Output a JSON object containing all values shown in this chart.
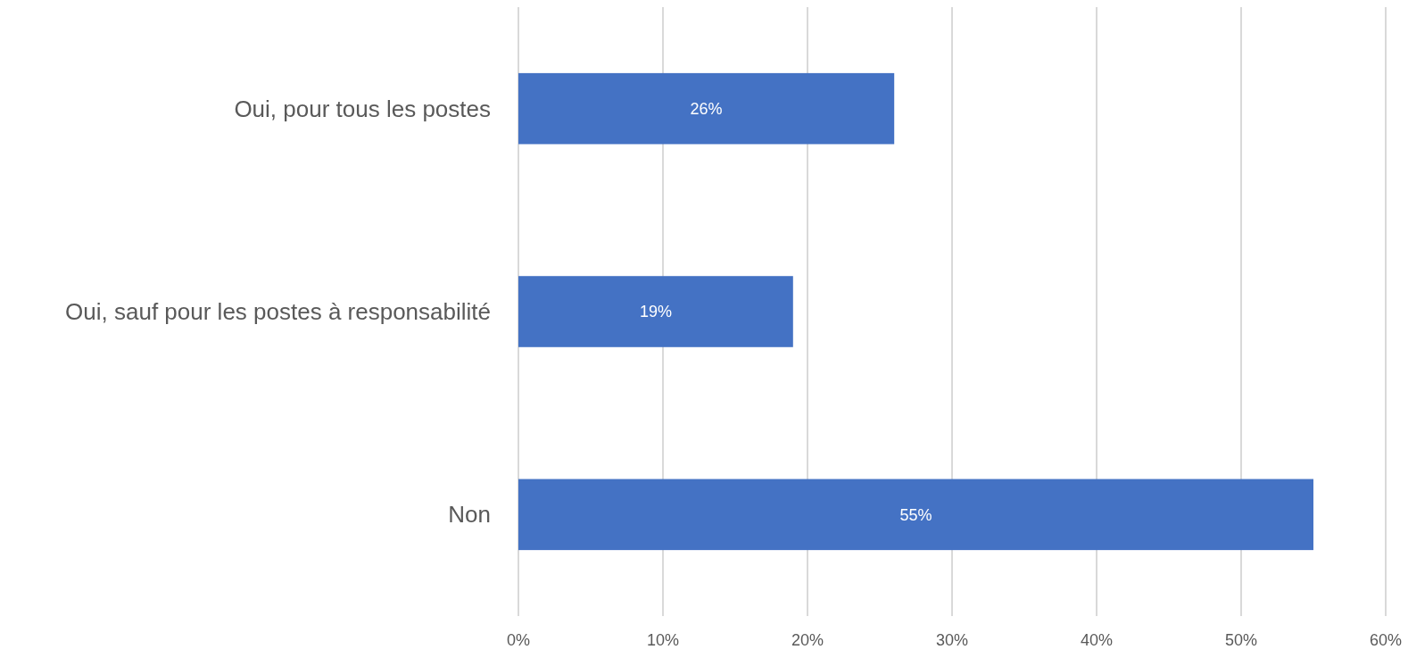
{
  "chart_data": {
    "type": "bar",
    "orientation": "horizontal",
    "categories": [
      "Oui, pour tous les postes",
      "Oui, sauf pour les postes à responsabilité",
      "Non"
    ],
    "values": [
      26,
      19,
      55
    ],
    "color": "#4472c4",
    "value_labels": [
      "26%",
      "19%",
      "55%"
    ],
    "xlim": [
      0,
      60
    ],
    "xticks": [
      {
        "value": 0,
        "label": "0%"
      },
      {
        "value": 10,
        "label": "10%"
      },
      {
        "value": 20,
        "label": "20%"
      },
      {
        "value": 30,
        "label": "30%"
      },
      {
        "value": 40,
        "label": "40%"
      },
      {
        "value": 50,
        "label": "50%"
      },
      {
        "value": 60,
        "label": "60%"
      }
    ],
    "grid": "x"
  }
}
